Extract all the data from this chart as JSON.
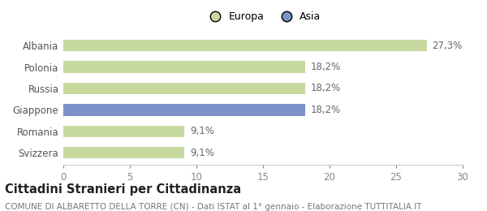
{
  "categories": [
    "Albania",
    "Polonia",
    "Russia",
    "Giappone",
    "Romania",
    "Svizzera"
  ],
  "values": [
    27.3,
    18.2,
    18.2,
    18.2,
    9.1,
    9.1
  ],
  "labels": [
    "27,3%",
    "18,2%",
    "18,2%",
    "18,2%",
    "9,1%",
    "9,1%"
  ],
  "colors": [
    "#c8d9a0",
    "#c8d9a0",
    "#c8d9a0",
    "#7b91c8",
    "#c8d9a0",
    "#c8d9a0"
  ],
  "legend_entries": [
    {
      "label": "Europa",
      "color": "#c8d9a0"
    },
    {
      "label": "Asia",
      "color": "#7b91c8"
    }
  ],
  "xlim": [
    0,
    30
  ],
  "xticks": [
    0,
    5,
    10,
    15,
    20,
    25,
    30
  ],
  "title": "Cittadini Stranieri per Cittadinanza",
  "subtitle": "COMUNE DI ALBARETTO DELLA TORRE (CN) - Dati ISTAT al 1° gennaio - Elaborazione TUTTITALIA.IT",
  "background_color": "#ffffff",
  "bar_height": 0.55,
  "label_fontsize": 8.5,
  "ytick_fontsize": 8.5,
  "xtick_fontsize": 8.5,
  "title_fontsize": 10.5,
  "subtitle_fontsize": 7.5
}
